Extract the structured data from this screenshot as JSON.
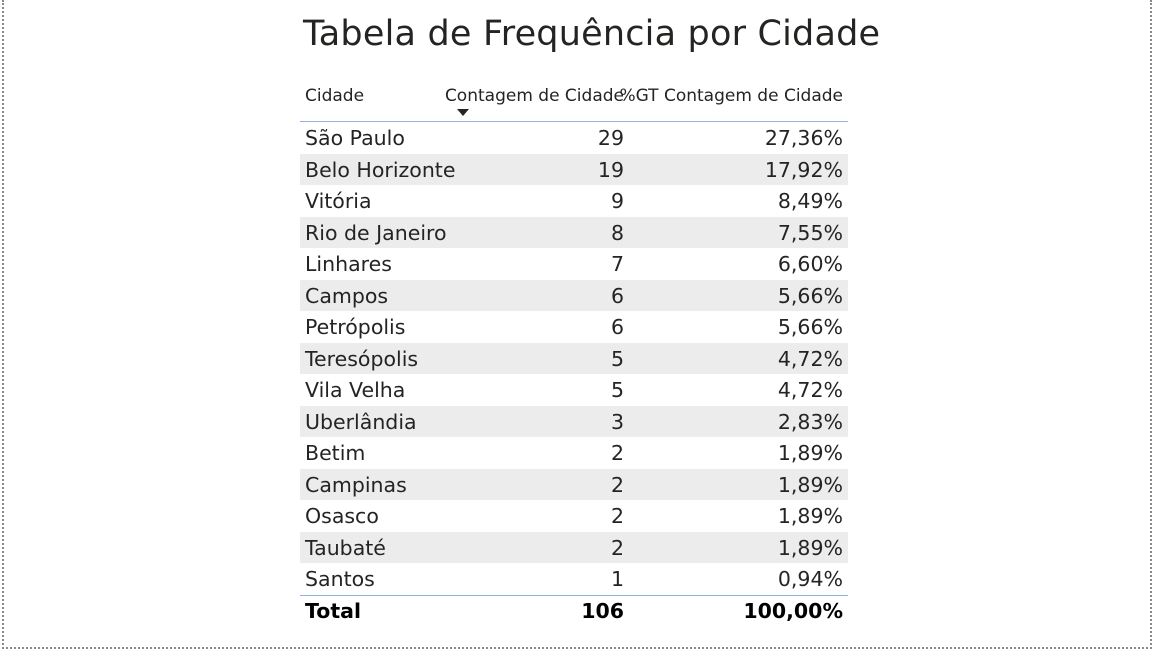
{
  "chart_data": {
    "type": "table",
    "title": "Tabela de Frequência por Cidade",
    "columns": [
      "Cidade",
      "Contagem de Cidade",
      "%GT Contagem de Cidade"
    ],
    "sort": {
      "column": "Contagem de Cidade",
      "direction": "descending"
    },
    "rows": [
      {
        "city": "São Paulo",
        "count": "29",
        "pct": "27,36%"
      },
      {
        "city": "Belo Horizonte",
        "count": "19",
        "pct": "17,92%"
      },
      {
        "city": "Vitória",
        "count": "9",
        "pct": "8,49%"
      },
      {
        "city": "Rio de Janeiro",
        "count": "8",
        "pct": "7,55%"
      },
      {
        "city": "Linhares",
        "count": "7",
        "pct": "6,60%"
      },
      {
        "city": "Campos",
        "count": "6",
        "pct": "5,66%"
      },
      {
        "city": "Petrópolis",
        "count": "6",
        "pct": "5,66%"
      },
      {
        "city": "Teresópolis",
        "count": "5",
        "pct": "4,72%"
      },
      {
        "city": "Vila Velha",
        "count": "5",
        "pct": "4,72%"
      },
      {
        "city": "Uberlândia",
        "count": "3",
        "pct": "2,83%"
      },
      {
        "city": "Betim",
        "count": "2",
        "pct": "1,89%"
      },
      {
        "city": "Campinas",
        "count": "2",
        "pct": "1,89%"
      },
      {
        "city": "Osasco",
        "count": "2",
        "pct": "1,89%"
      },
      {
        "city": "Taubaté",
        "count": "2",
        "pct": "1,89%"
      },
      {
        "city": "Santos",
        "count": "1",
        "pct": "0,94%"
      }
    ],
    "total": {
      "label": "Total",
      "count": "106",
      "pct": "100,00%"
    },
    "colors": {
      "text": "#252423",
      "alt_row": "#ececec",
      "header_rule": "#8fb4e3"
    }
  }
}
